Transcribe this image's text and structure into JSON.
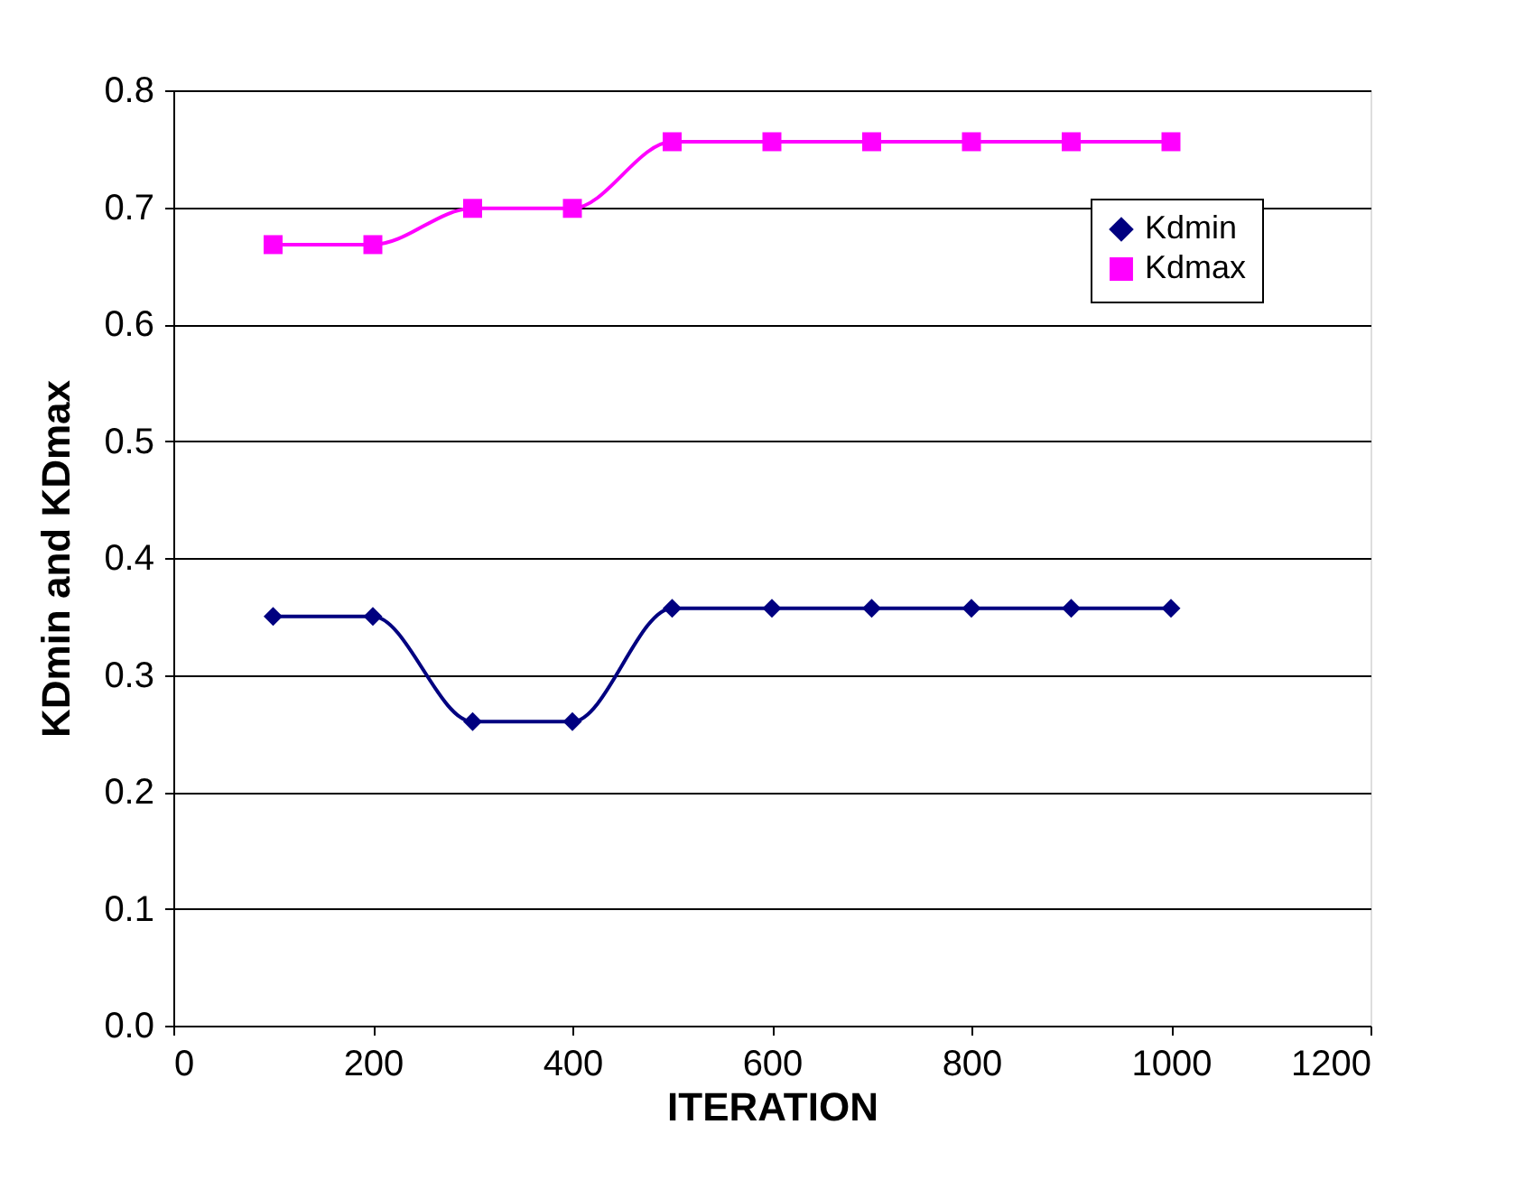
{
  "chart_data": {
    "type": "line",
    "xlabel": "ITERATION",
    "ylabel": "KDmin and KDmax",
    "x": [
      100,
      200,
      300,
      400,
      500,
      600,
      700,
      800,
      900,
      1000
    ],
    "series": [
      {
        "name": "Kdmin",
        "color": "#000080",
        "marker": "diamond",
        "values": [
          0.35,
          0.35,
          0.26,
          0.26,
          0.357,
          0.357,
          0.357,
          0.357,
          0.357,
          0.357
        ]
      },
      {
        "name": "Kdmax",
        "color": "#ff00ff",
        "marker": "square",
        "values": [
          0.668,
          0.668,
          0.699,
          0.699,
          0.756,
          0.756,
          0.756,
          0.756,
          0.756,
          0.756
        ]
      }
    ],
    "xlim": [
      0,
      1200
    ],
    "xticks": [
      0,
      200,
      400,
      600,
      800,
      1000,
      1200
    ],
    "ylim": [
      0,
      0.8
    ],
    "yticks": [
      {
        "value": 0,
        "label": "0.0"
      },
      0.1,
      0.2,
      0.3,
      0.4,
      0.5,
      0.6,
      0.7,
      0.8
    ],
    "grid": "y",
    "legend": "top right",
    "line_style": "solid"
  }
}
